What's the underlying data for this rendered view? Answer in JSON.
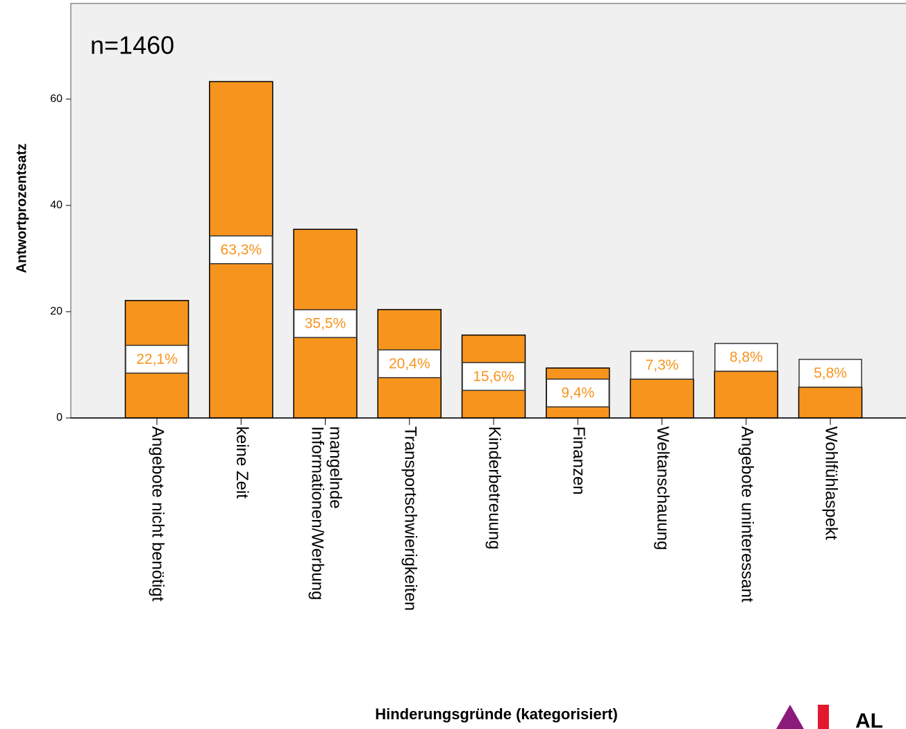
{
  "chart_data": {
    "type": "bar",
    "annotation": "n=1460",
    "x_label": "Hinderungsgründe (kategorisiert)",
    "y_label": "Antwortprozentsatz",
    "categories": [
      "Angebote nicht benötigt",
      "keine Zeit",
      "mangelnde Informationen/Werbung",
      "Transportschwierigkeiten",
      "Kinderbetreuung",
      "Finanzen",
      "Weltanschauung",
      "Angebote uninteressant",
      "Wohlfühlaspekt"
    ],
    "values": [
      22.1,
      63.3,
      35.5,
      20.4,
      15.6,
      9.4,
      7.3,
      8.8,
      5.8
    ],
    "value_labels": [
      "22,1%",
      "63,3%",
      "35,5%",
      "20,4%",
      "15,6%",
      "9,4%",
      "7,3%",
      "8,8%",
      "5,8%"
    ],
    "color": "#f7941d",
    "ylim": [
      0,
      78
    ],
    "yticks": [
      0,
      20,
      40,
      60
    ],
    "logo_text": "AL"
  }
}
